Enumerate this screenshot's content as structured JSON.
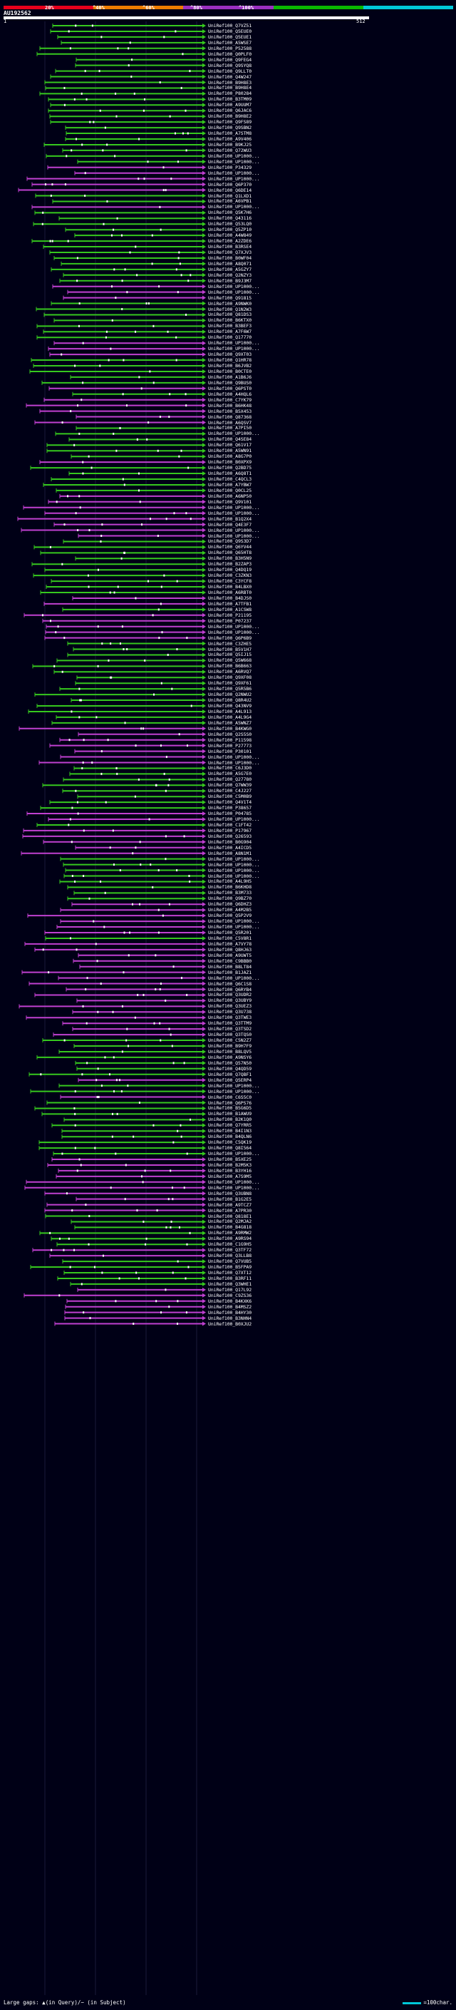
{
  "colors": {
    "background": "#000016",
    "scale": [
      "#e8001c",
      "#ec7c00",
      "#9a2fc0",
      "#0ab800",
      "#00c8d8"
    ],
    "hit_green": "#36c81e",
    "hit_magenta": "#c040d0",
    "gap_dot": "#ffffff",
    "gridline": "#1a1a3a"
  },
  "scale": {
    "labels": [
      "20%",
      "^40%",
      "^60%",
      "^80%",
      "^100%"
    ]
  },
  "query": {
    "id": "AU192562",
    "start": "1",
    "end": "512"
  },
  "hits": [
    {
      "label": "UniRef100_Q7VZ51",
      "color": "green"
    },
    {
      "label": "UniRef100_Q5EUE0",
      "color": "green"
    },
    {
      "label": "UniRef100_Q5EUE1",
      "color": "green"
    },
    {
      "label": "UniRef100_A5WSE7",
      "color": "green"
    },
    {
      "label": "UniRef100_P52588",
      "color": "green"
    },
    {
      "label": "UniRef100_Q0PLF0",
      "color": "green"
    },
    {
      "label": "UniRef100_Q9FEG4",
      "color": "green"
    },
    {
      "label": "UniRef100_Q9SYQ8",
      "color": "green"
    },
    {
      "label": "UniRef100_Q9LLT0",
      "color": "green"
    },
    {
      "label": "UniRef100_Q4W247",
      "color": "green"
    },
    {
      "label": "UniRef100_B9H8E3",
      "color": "green"
    },
    {
      "label": "UniRef100_B9H8E4",
      "color": "green"
    },
    {
      "label": "UniRef100_P80284",
      "color": "green"
    },
    {
      "label": "UniRef100_B3TM09",
      "color": "green"
    },
    {
      "label": "UniRef100_A9UUM7",
      "color": "green"
    },
    {
      "label": "UniRef100_Q6JAC6",
      "color": "green"
    },
    {
      "label": "UniRef100_B9H8E2",
      "color": "green"
    },
    {
      "label": "UniRef100_Q9FS89",
      "color": "green"
    },
    {
      "label": "UniRef100_Q9SBN2",
      "color": "green"
    },
    {
      "label": "UniRef100_A7STM8",
      "color": "green"
    },
    {
      "label": "UniRef100_A9V406",
      "color": "green"
    },
    {
      "label": "UniRef100_B9KJ25",
      "color": "green"
    },
    {
      "label": "UniRef100_Q72WU3",
      "color": "green"
    },
    {
      "label": "UniRef100_UP1000...",
      "color": "green"
    },
    {
      "label": "UniRef100_UP1000...",
      "color": "green"
    },
    {
      "label": "UniRef100_P34329",
      "color": "magenta"
    },
    {
      "label": "UniRef100_UP1000...",
      "color": "magenta"
    },
    {
      "label": "UniRef100_UP1000...",
      "color": "magenta"
    },
    {
      "label": "UniRef100_Q6P370",
      "color": "magenta"
    },
    {
      "label": "UniRef100_Q6DE14",
      "color": "magenta"
    },
    {
      "label": "UniRef100_Q1LXD1",
      "color": "green"
    },
    {
      "label": "UniRef100_A6VPB1",
      "color": "green"
    },
    {
      "label": "UniRef100_UP1000...",
      "color": "magenta"
    },
    {
      "label": "UniRef100_Q5K7H6",
      "color": "green"
    },
    {
      "label": "UniRef100_Q43116",
      "color": "green"
    },
    {
      "label": "UniRef100_Q53LQ0",
      "color": "green"
    },
    {
      "label": "UniRef100_Q5ZP10",
      "color": "green"
    },
    {
      "label": "UniRef100_A4W849",
      "color": "green"
    },
    {
      "label": "UniRef100_A2ZDE6",
      "color": "green"
    },
    {
      "label": "UniRef100_B3RSE4",
      "color": "green"
    },
    {
      "label": "UniRef100_Q7XJV3",
      "color": "green"
    },
    {
      "label": "UniRef100_B0WF04",
      "color": "green"
    },
    {
      "label": "UniRef100_A8Q071",
      "color": "green"
    },
    {
      "label": "UniRef100_A5GZY7",
      "color": "green"
    },
    {
      "label": "UniRef100_Q2NZY3",
      "color": "green"
    },
    {
      "label": "UniRef100_B9J3M7",
      "color": "green"
    },
    {
      "label": "UniRef100_UP1000...",
      "color": "magenta"
    },
    {
      "label": "UniRef100_UP1000...",
      "color": "magenta"
    },
    {
      "label": "UniRef100_Q91815",
      "color": "magenta"
    },
    {
      "label": "UniRef100_A9NWK0",
      "color": "green"
    },
    {
      "label": "UniRef100_Q1N2W3",
      "color": "green"
    },
    {
      "label": "UniRef100_Q81DS3",
      "color": "green"
    },
    {
      "label": "UniRef100_B6KTX0",
      "color": "green"
    },
    {
      "label": "UniRef100_B3BEF3",
      "color": "green"
    },
    {
      "label": "UniRef100_A7F6W7",
      "color": "green"
    },
    {
      "label": "UniRef100_Q17770",
      "color": "green"
    },
    {
      "label": "UniRef100_UP1000...",
      "color": "magenta"
    },
    {
      "label": "UniRef100_UP1000...",
      "color": "magenta"
    },
    {
      "label": "UniRef100_Q9XT03",
      "color": "magenta"
    },
    {
      "label": "UniRef100_Q1HR78",
      "color": "green"
    },
    {
      "label": "UniRef100_B6JVB2",
      "color": "green"
    },
    {
      "label": "UniRef100_B0CTE0",
      "color": "green"
    },
    {
      "label": "UniRef100_A1B6J6",
      "color": "green"
    },
    {
      "label": "UniRef100_Q9BUS0",
      "color": "green"
    },
    {
      "label": "UniRef100_Q6PST0",
      "color": "magenta"
    },
    {
      "label": "UniRef100_A4HQL6",
      "color": "green"
    },
    {
      "label": "UniRef100_C7YK79",
      "color": "magenta"
    },
    {
      "label": "UniRef100_B6HK48",
      "color": "magenta"
    },
    {
      "label": "UniRef100_B5X453",
      "color": "magenta"
    },
    {
      "label": "UniRef100_Q87368",
      "color": "magenta"
    },
    {
      "label": "UniRef100_A6QSV7",
      "color": "magenta"
    },
    {
      "label": "UniRef100_A7PI50",
      "color": "green"
    },
    {
      "label": "UniRef100_UP1000...",
      "color": "green"
    },
    {
      "label": "UniRef100_Q4SE84",
      "color": "green"
    },
    {
      "label": "UniRef100_Q61V17",
      "color": "green"
    },
    {
      "label": "UniRef100_A5WN91",
      "color": "green"
    },
    {
      "label": "UniRef100_A8G7P0",
      "color": "green"
    },
    {
      "label": "UniRef100_B0XPX9",
      "color": "magenta"
    },
    {
      "label": "UniRef100_Q2BD75",
      "color": "green"
    },
    {
      "label": "UniRef100_A6Q8T1",
      "color": "green"
    },
    {
      "label": "UniRef100_C4QCL3",
      "color": "green"
    },
    {
      "label": "UniRef100_A7YBW7",
      "color": "green"
    },
    {
      "label": "UniRef100_Q0CL25",
      "color": "green"
    },
    {
      "label": "UniRef100_A6NP50",
      "color": "magenta"
    },
    {
      "label": "UniRef100_Q9V101",
      "color": "magenta"
    },
    {
      "label": "UniRef100_UP1000...",
      "color": "magenta"
    },
    {
      "label": "UniRef100_UP1000...",
      "color": "magenta"
    },
    {
      "label": "UniRef100_B1Q2X4",
      "color": "magenta"
    },
    {
      "label": "UniRef100_Q4E3F7",
      "color": "magenta"
    },
    {
      "label": "UniRef100_UP1000...",
      "color": "magenta"
    },
    {
      "label": "UniRef100_UP1000...",
      "color": "magenta"
    },
    {
      "label": "UniRef100_Q9S3D7",
      "color": "green"
    },
    {
      "label": "UniRef100_Q6YV44",
      "color": "green"
    },
    {
      "label": "UniRef100_Q65HT8",
      "color": "green"
    },
    {
      "label": "UniRef100_B3H5N9",
      "color": "green"
    },
    {
      "label": "UniRef100_B2ZAP3",
      "color": "green"
    },
    {
      "label": "UniRef100_Q4DQ19",
      "color": "green"
    },
    {
      "label": "UniRef100_C3ZKN3",
      "color": "green"
    },
    {
      "label": "UniRef100_C3YCF8",
      "color": "green"
    },
    {
      "label": "UniRef100_B4LBX0",
      "color": "green"
    },
    {
      "label": "UniRef100_A6RBT0",
      "color": "green"
    },
    {
      "label": "UniRef100_B4DJS0",
      "color": "magenta"
    },
    {
      "label": "UniRef100_A7TFB1",
      "color": "magenta"
    },
    {
      "label": "UniRef100_A1CSW8",
      "color": "green"
    },
    {
      "label": "UniRef100_P21195",
      "color": "magenta"
    },
    {
      "label": "UniRef100_P07237",
      "color": "magenta"
    },
    {
      "label": "UniRef100_UP1000...",
      "color": "magenta"
    },
    {
      "label": "UniRef100_UP1000...",
      "color": "magenta"
    },
    {
      "label": "UniRef100_Q6P6B9",
      "color": "magenta"
    },
    {
      "label": "UniRef100_C3ZHE5",
      "color": "green"
    },
    {
      "label": "UniRef100_B5V1H7",
      "color": "green"
    },
    {
      "label": "UniRef100_Q5IJ15",
      "color": "green"
    },
    {
      "label": "UniRef100_Q5W668",
      "color": "green"
    },
    {
      "label": "UniRef100_B6B663",
      "color": "green"
    },
    {
      "label": "UniRef100_A6RVQ7",
      "color": "green"
    },
    {
      "label": "UniRef100_Q9XF08",
      "color": "green"
    },
    {
      "label": "UniRef100_Q9XF61",
      "color": "green"
    },
    {
      "label": "UniRef100_Q5R5B6",
      "color": "green"
    },
    {
      "label": "UniRef100_Q2NWU2",
      "color": "green"
    },
    {
      "label": "UniRef100_Q8R4U2",
      "color": "green"
    },
    {
      "label": "UniRef100_Q43NV9",
      "color": "green"
    },
    {
      "label": "UniRef100_A4L913",
      "color": "green"
    },
    {
      "label": "UniRef100_A4L9G4",
      "color": "green"
    },
    {
      "label": "UniRef100_A5WNZ7",
      "color": "green"
    },
    {
      "label": "UniRef100_B4KWG0",
      "color": "magenta"
    },
    {
      "label": "UniRef100_Q2S5S0",
      "color": "magenta"
    },
    {
      "label": "UniRef100_P11598",
      "color": "magenta"
    },
    {
      "label": "UniRef100_P27773",
      "color": "magenta"
    },
    {
      "label": "UniRef100_P30101",
      "color": "magenta"
    },
    {
      "label": "UniRef100_UP1000...",
      "color": "magenta"
    },
    {
      "label": "UniRef100_UP1000...",
      "color": "magenta"
    },
    {
      "label": "UniRef100_C6J3D0",
      "color": "green"
    },
    {
      "label": "UniRef100_A5G7E0",
      "color": "green"
    },
    {
      "label": "UniRef100_Q27780",
      "color": "green"
    },
    {
      "label": "UniRef100_Q7WW39",
      "color": "green"
    },
    {
      "label": "UniRef100_C4J227",
      "color": "green"
    },
    {
      "label": "UniRef100_C5M0B9",
      "color": "green"
    },
    {
      "label": "UniRef100_Q4V1T4",
      "color": "green"
    },
    {
      "label": "UniRef100_P38657",
      "color": "green"
    },
    {
      "label": "UniRef100_P04785",
      "color": "magenta"
    },
    {
      "label": "UniRef100_UP1000...",
      "color": "magenta"
    },
    {
      "label": "UniRef100_C1FT42",
      "color": "green"
    },
    {
      "label": "UniRef100_P17967",
      "color": "magenta"
    },
    {
      "label": "UniRef100_Q26593",
      "color": "magenta"
    },
    {
      "label": "UniRef100_B0G904",
      "color": "magenta"
    },
    {
      "label": "UniRef100_A4ICD5",
      "color": "magenta"
    },
    {
      "label": "UniRef100_A8N1M1",
      "color": "magenta"
    },
    {
      "label": "UniRef100_UP1000...",
      "color": "green"
    },
    {
      "label": "UniRef100_UP1000...",
      "color": "green"
    },
    {
      "label": "UniRef100_UP1000...",
      "color": "green"
    },
    {
      "label": "UniRef100_UP1000...",
      "color": "green"
    },
    {
      "label": "UniRef100_A4L9H5",
      "color": "green"
    },
    {
      "label": "UniRef100_B6KHD8",
      "color": "green"
    },
    {
      "label": "UniRef100_B3M733",
      "color": "green"
    },
    {
      "label": "UniRef100_Q9BZ70",
      "color": "green"
    },
    {
      "label": "UniRef100_Q6DHZ3",
      "color": "magenta"
    },
    {
      "label": "UniRef100_A4M2B5",
      "color": "magenta"
    },
    {
      "label": "UniRef100_Q5P2V9",
      "color": "magenta"
    },
    {
      "label": "UniRef100_UP1000...",
      "color": "magenta"
    },
    {
      "label": "UniRef100_UP1000...",
      "color": "magenta"
    },
    {
      "label": "UniRef100_Q5R201",
      "color": "magenta"
    },
    {
      "label": "UniRef100_C5V8R1",
      "color": "green"
    },
    {
      "label": "UniRef100_A7VY78",
      "color": "magenta"
    },
    {
      "label": "UniRef100_Q8HJ63",
      "color": "magenta"
    },
    {
      "label": "UniRef100_A9UWT5",
      "color": "magenta"
    },
    {
      "label": "UniRef100_C9BBB0",
      "color": "magenta"
    },
    {
      "label": "UniRef100_B8LT84",
      "color": "magenta"
    },
    {
      "label": "UniRef100_B1JAZ1",
      "color": "magenta"
    },
    {
      "label": "UniRef100_UP1000...",
      "color": "magenta"
    },
    {
      "label": "UniRef100_Q6C1S8",
      "color": "magenta"
    },
    {
      "label": "UniRef100_Q6RYB4",
      "color": "magenta"
    },
    {
      "label": "UniRef100_Q3UDR2",
      "color": "magenta"
    },
    {
      "label": "UniRef100_Q3UBY9",
      "color": "magenta"
    },
    {
      "label": "UniRef100_Q3UEZ3",
      "color": "magenta"
    },
    {
      "label": "UniRef100_Q3U738",
      "color": "magenta"
    },
    {
      "label": "UniRef100_Q3TWE3",
      "color": "magenta"
    },
    {
      "label": "UniRef100_Q3TTM9",
      "color": "magenta"
    },
    {
      "label": "UniRef100_Q3TSD2",
      "color": "magenta"
    },
    {
      "label": "UniRef100_Q3TQS0",
      "color": "magenta"
    },
    {
      "label": "UniRef100_C5N2Z7",
      "color": "green"
    },
    {
      "label": "UniRef100_B9H7F9",
      "color": "green"
    },
    {
      "label": "UniRef100_B8LQV5",
      "color": "green"
    },
    {
      "label": "UniRef100_A9NSY6",
      "color": "green"
    },
    {
      "label": "UniRef100_Q57N50",
      "color": "green"
    },
    {
      "label": "UniRef100_Q4QD59",
      "color": "green"
    },
    {
      "label": "UniRef100_Q7QBF1",
      "color": "green"
    },
    {
      "label": "UniRef100_Q5ERP4",
      "color": "magenta"
    },
    {
      "label": "UniRef100_UP1000...",
      "color": "green"
    },
    {
      "label": "UniRef100_UP1000...",
      "color": "green"
    },
    {
      "label": "UniRef100_C6S5C0",
      "color": "magenta"
    },
    {
      "label": "UniRef100_Q6PS76",
      "color": "green"
    },
    {
      "label": "UniRef100_B5G6D5",
      "color": "green"
    },
    {
      "label": "UniRef100_B1AWU9",
      "color": "green"
    },
    {
      "label": "UniRef100_B2K1Q0",
      "color": "green"
    },
    {
      "label": "UniRef100_Q7YRR5",
      "color": "green"
    },
    {
      "label": "UniRef100_B4I1N3",
      "color": "green"
    },
    {
      "label": "UniRef100_B4QLN6",
      "color": "green"
    },
    {
      "label": "UniRef100_C5QK19",
      "color": "green"
    },
    {
      "label": "UniRef100_Q8I564",
      "color": "green"
    },
    {
      "label": "UniRef100_UP1000...",
      "color": "green"
    },
    {
      "label": "UniRef100_B5XE25",
      "color": "magenta"
    },
    {
      "label": "UniRef100_B2M5K3",
      "color": "magenta"
    },
    {
      "label": "UniRef100_B3YH16",
      "color": "magenta"
    },
    {
      "label": "UniRef100_A7S9M5",
      "color": "magenta"
    },
    {
      "label": "UniRef100_UP1000...",
      "color": "magenta"
    },
    {
      "label": "UniRef100_UP1000...",
      "color": "magenta"
    },
    {
      "label": "UniRef100_Q3UBN8",
      "color": "magenta"
    },
    {
      "label": "UniRef100_B1G2E5",
      "color": "magenta"
    },
    {
      "label": "UniRef100_A9TCZ7",
      "color": "magenta"
    },
    {
      "label": "UniRef100_A7PR30",
      "color": "magenta"
    },
    {
      "label": "UniRef100_Q818E1",
      "color": "green"
    },
    {
      "label": "UniRef100_Q2MJA2",
      "color": "green"
    },
    {
      "label": "UniRef100_B4G818",
      "color": "green"
    },
    {
      "label": "UniRef100_A9RMW2",
      "color": "green"
    },
    {
      "label": "UniRef100_A9RS94",
      "color": "green"
    },
    {
      "label": "UniRef100_C1G9H5",
      "color": "green"
    },
    {
      "label": "UniRef100_Q3TF72",
      "color": "magenta"
    },
    {
      "label": "UniRef100_Q3LLB8",
      "color": "magenta"
    },
    {
      "label": "UniRef100_Q7VUB5",
      "color": "green"
    },
    {
      "label": "UniRef100_B5FPA9",
      "color": "green"
    },
    {
      "label": "UniRef100_Q7XT12",
      "color": "green"
    },
    {
      "label": "UniRef100_B3RF11",
      "color": "green"
    },
    {
      "label": "UniRef100_Q3WHE1",
      "color": "green"
    },
    {
      "label": "UniRef100_Q17L92",
      "color": "magenta"
    },
    {
      "label": "UniRef100_C9ZS36",
      "color": "magenta"
    },
    {
      "label": "UniRef100_B4KXK6",
      "color": "magenta"
    },
    {
      "label": "UniRef100_B4MSZ2",
      "color": "magenta"
    },
    {
      "label": "UniRef100_B4HY30",
      "color": "magenta"
    },
    {
      "label": "UniRef100_B3NHN4",
      "color": "magenta"
    },
    {
      "label": "UniRef100_B0XJU2",
      "color": "magenta"
    }
  ],
  "footer": {
    "left": "Large gaps: ▲(in Query)/− (in Subject)",
    "right": "=100char."
  }
}
